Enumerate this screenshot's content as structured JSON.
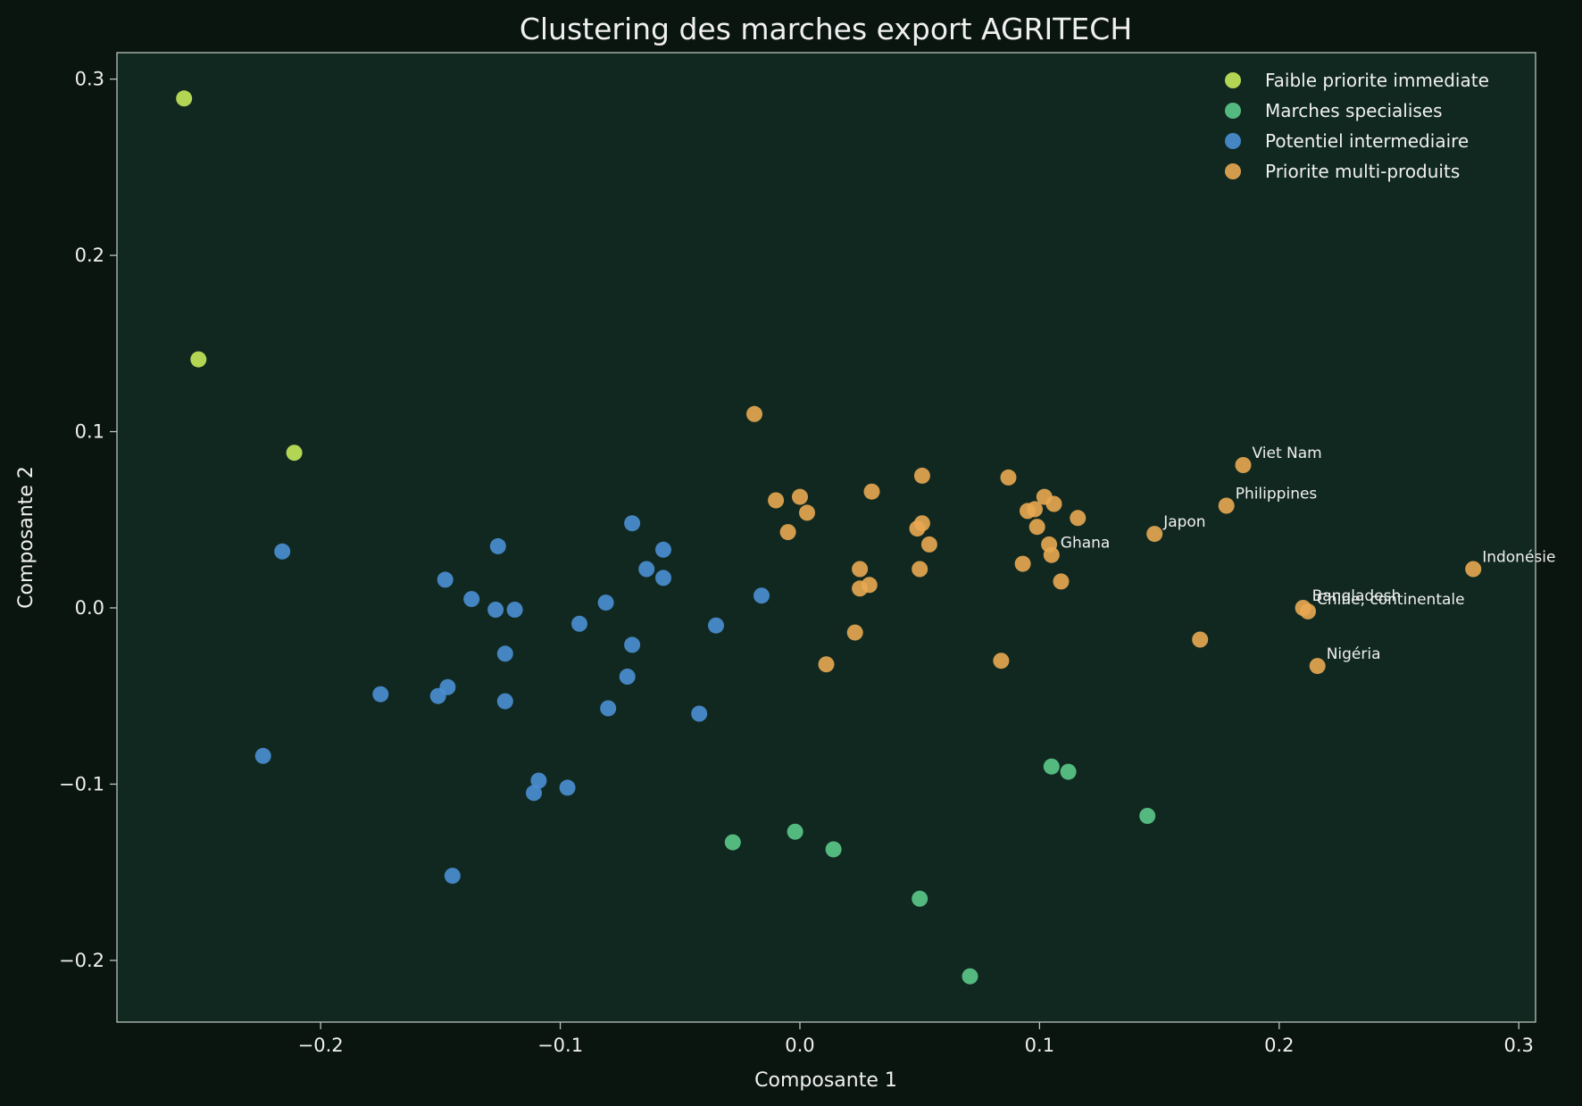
{
  "chart_data": {
    "type": "scatter",
    "title": "Clustering des marches export AGRITECH",
    "xlabel": "Composante 1",
    "ylabel": "Composante 2",
    "xlim": [
      -0.285,
      0.307
    ],
    "ylim": [
      -0.235,
      0.315
    ],
    "xticks": [
      -0.2,
      -0.1,
      0.0,
      0.1,
      0.2,
      0.3
    ],
    "xtick_labels": [
      "−0.2",
      "−0.1",
      "0.0",
      "0.1",
      "0.2",
      "0.3"
    ],
    "yticks": [
      -0.2,
      -0.1,
      0.0,
      0.1,
      0.2,
      0.3
    ],
    "ytick_labels": [
      "−0.2",
      "−0.1",
      "0.0",
      "0.1",
      "0.2",
      "0.3"
    ],
    "grid": false,
    "legend_position": "top-right",
    "background": "#0a1510",
    "plot_background": "#112820",
    "series": [
      {
        "name": "Faible priorite immediate",
        "color": "#c5e85a",
        "points": [
          [
            -0.257,
            0.289
          ],
          [
            -0.251,
            0.141
          ],
          [
            -0.211,
            0.088
          ]
        ]
      },
      {
        "name": "Marches specialises",
        "color": "#5cc98a",
        "points": [
          [
            0.105,
            -0.09
          ],
          [
            0.112,
            -0.093
          ],
          [
            0.145,
            -0.118
          ],
          [
            -0.028,
            -0.133
          ],
          [
            -0.002,
            -0.127
          ],
          [
            0.014,
            -0.137
          ],
          [
            0.05,
            -0.165
          ],
          [
            0.071,
            -0.209
          ]
        ]
      },
      {
        "name": "Potentiel intermediaire",
        "color": "#4a8fd4",
        "points": [
          [
            -0.216,
            0.032
          ],
          [
            -0.07,
            0.048
          ],
          [
            -0.126,
            0.035
          ],
          [
            -0.057,
            0.033
          ],
          [
            -0.064,
            0.022
          ],
          [
            -0.057,
            0.017
          ],
          [
            -0.148,
            0.016
          ],
          [
            -0.137,
            0.005
          ],
          [
            -0.127,
            -0.001
          ],
          [
            -0.119,
            -0.001
          ],
          [
            -0.081,
            0.003
          ],
          [
            -0.092,
            -0.009
          ],
          [
            -0.035,
            -0.01
          ],
          [
            -0.016,
            0.007
          ],
          [
            -0.07,
            -0.021
          ],
          [
            -0.123,
            -0.026
          ],
          [
            -0.072,
            -0.039
          ],
          [
            -0.175,
            -0.049
          ],
          [
            -0.147,
            -0.045
          ],
          [
            -0.151,
            -0.05
          ],
          [
            -0.123,
            -0.053
          ],
          [
            -0.08,
            -0.057
          ],
          [
            -0.042,
            -0.06
          ],
          [
            -0.224,
            -0.084
          ],
          [
            -0.109,
            -0.098
          ],
          [
            -0.111,
            -0.105
          ],
          [
            -0.097,
            -0.102
          ],
          [
            -0.145,
            -0.152
          ]
        ]
      },
      {
        "name": "Priorite multi-produits",
        "color": "#e9a852",
        "points": [
          [
            -0.019,
            0.11
          ],
          [
            -0.01,
            0.061
          ],
          [
            0.0,
            0.063
          ],
          [
            0.003,
            0.054
          ],
          [
            -0.005,
            0.043
          ],
          [
            0.03,
            0.066
          ],
          [
            0.051,
            0.075
          ],
          [
            0.087,
            0.074
          ],
          [
            0.102,
            0.063
          ],
          [
            0.106,
            0.059
          ],
          [
            0.098,
            0.056
          ],
          [
            0.095,
            0.055
          ],
          [
            0.116,
            0.051
          ],
          [
            0.051,
            0.048
          ],
          [
            0.049,
            0.045
          ],
          [
            0.099,
            0.046
          ],
          [
            0.054,
            0.036
          ],
          [
            0.104,
            0.036
          ],
          [
            0.105,
            0.03
          ],
          [
            0.093,
            0.025
          ],
          [
            0.025,
            0.022
          ],
          [
            0.05,
            0.022
          ],
          [
            0.109,
            0.015
          ],
          [
            0.029,
            0.013
          ],
          [
            0.025,
            0.011
          ],
          [
            0.023,
            -0.014
          ],
          [
            0.011,
            -0.032
          ],
          [
            0.084,
            -0.03
          ],
          [
            0.167,
            -0.018
          ],
          [
            0.185,
            0.081
          ],
          [
            0.178,
            0.058
          ],
          [
            0.148,
            0.042
          ],
          [
            0.281,
            0.022
          ],
          [
            0.21,
            0.0
          ],
          [
            0.212,
            -0.002
          ],
          [
            0.216,
            -0.033
          ]
        ]
      }
    ],
    "annotations": [
      {
        "text": "Viet Nam",
        "x": 0.185,
        "y": 0.081
      },
      {
        "text": "Philippines",
        "x": 0.178,
        "y": 0.058
      },
      {
        "text": "Japon",
        "x": 0.148,
        "y": 0.042
      },
      {
        "text": "Ghana",
        "x": 0.105,
        "y": 0.03
      },
      {
        "text": "Indonésie",
        "x": 0.281,
        "y": 0.022
      },
      {
        "text": "Bangladesh",
        "x": 0.21,
        "y": 0.0
      },
      {
        "text": "Chine, continentale",
        "x": 0.212,
        "y": -0.002
      },
      {
        "text": "Nigéria",
        "x": 0.216,
        "y": -0.033
      }
    ]
  }
}
